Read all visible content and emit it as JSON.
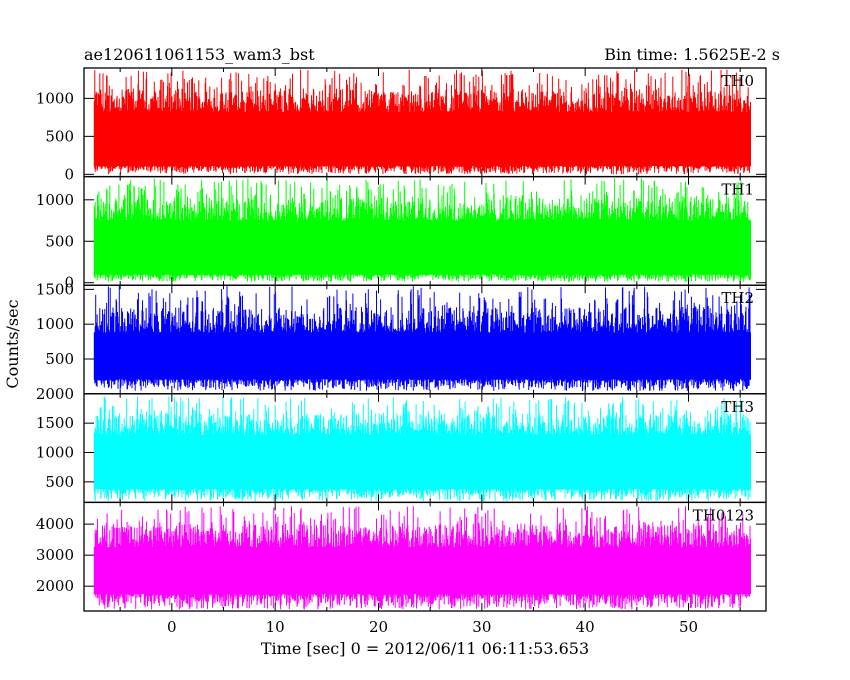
{
  "chart_data": {
    "type": "line",
    "title": "ae120611061153_wam3_bst",
    "subtitle": "Bin time: 1.5625E-2 s",
    "xlabel": "Time [sec] 0 = 2012/06/11 06:11:53.653",
    "ylabel": "Counts/sec",
    "xlim": [
      -8.5,
      57.5
    ],
    "x_ticks": [
      0,
      10,
      20,
      30,
      40,
      50
    ],
    "data_x_range": [
      -7.5,
      56
    ],
    "grid": false,
    "panels": [
      {
        "name": "TH0",
        "color": "#ff0000",
        "ylim": [
          -30,
          1400
        ],
        "y_ticks": [
          0,
          500,
          1000
        ],
        "base_low": 110,
        "base_high": 820,
        "min": 0,
        "max": 1380,
        "mean": 580
      },
      {
        "name": "TH1",
        "color": "#00ff00",
        "ylim": [
          -30,
          1280
        ],
        "y_ticks": [
          0,
          500,
          1000
        ],
        "base_low": 100,
        "base_high": 750,
        "min": 10,
        "max": 1260,
        "mean": 560
      },
      {
        "name": "TH2",
        "color": "#0000ff",
        "ylim": [
          0,
          1560
        ],
        "y_ticks": [
          500,
          1000,
          1500
        ],
        "base_low": 210,
        "base_high": 880,
        "min": 40,
        "max": 1550,
        "mean": 640
      },
      {
        "name": "TH3",
        "color": "#00ffff",
        "ylim": [
          150,
          2000
        ],
        "y_ticks": [
          500,
          1000,
          1500,
          2000
        ],
        "base_low": 380,
        "base_high": 1300,
        "min": 170,
        "max": 1960,
        "mean": 950
      },
      {
        "name": "TH0123",
        "color": "#ff00ff",
        "ylim": [
          1200,
          4700
        ],
        "y_ticks": [
          2000,
          3000,
          4000
        ],
        "base_low": 1750,
        "base_high": 3250,
        "min": 1250,
        "max": 4600,
        "mean": 2600
      }
    ]
  }
}
